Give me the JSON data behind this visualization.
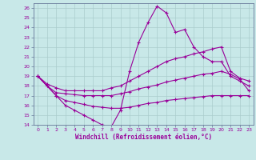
{
  "xlabel": "Windchill (Refroidissement éolien,°C)",
  "bg_color": "#c8e8e8",
  "line_color": "#990099",
  "grid_color": "#aacccc",
  "xlim": [
    -0.5,
    23.5
  ],
  "ylim": [
    14,
    26.5
  ],
  "xticks": [
    0,
    1,
    2,
    3,
    4,
    5,
    6,
    7,
    8,
    9,
    10,
    11,
    12,
    13,
    14,
    15,
    16,
    17,
    18,
    19,
    20,
    21,
    22,
    23
  ],
  "yticks": [
    14,
    15,
    16,
    17,
    18,
    19,
    20,
    21,
    22,
    23,
    24,
    25,
    26
  ],
  "curve1_x": [
    0,
    1,
    2,
    3,
    4,
    5,
    6,
    7,
    8,
    9,
    10,
    11,
    12,
    13,
    14,
    15,
    16,
    17,
    18,
    19,
    20,
    21,
    22,
    23
  ],
  "curve1_y": [
    19,
    18,
    17,
    16,
    15.5,
    15,
    14.5,
    14,
    13.8,
    15.5,
    19.5,
    22.5,
    24.5,
    26.2,
    25.5,
    23.5,
    23.8,
    22,
    21,
    20.5,
    20.5,
    19,
    18.5,
    18
  ],
  "curve2_x": [
    0,
    1,
    2,
    3,
    4,
    5,
    6,
    7,
    8,
    9,
    10,
    11,
    12,
    13,
    14,
    15,
    16,
    17,
    18,
    19,
    20,
    21,
    22,
    23
  ],
  "curve2_y": [
    19,
    18.2,
    17.8,
    17.5,
    17.5,
    17.5,
    17.5,
    17.5,
    17.8,
    18,
    18.5,
    19,
    19.5,
    20,
    20.5,
    20.8,
    21,
    21.3,
    21.5,
    21.8,
    22,
    19.5,
    18.8,
    18.5
  ],
  "curve3_x": [
    0,
    1,
    2,
    3,
    4,
    5,
    6,
    7,
    8,
    9,
    10,
    11,
    12,
    13,
    14,
    15,
    16,
    17,
    18,
    19,
    20,
    21,
    22,
    23
  ],
  "curve3_y": [
    19,
    18,
    17.3,
    17.2,
    17.1,
    17.0,
    17.0,
    17.0,
    17.0,
    17.2,
    17.4,
    17.7,
    17.9,
    18.1,
    18.4,
    18.6,
    18.8,
    19.0,
    19.2,
    19.3,
    19.5,
    19.2,
    18.7,
    17.5
  ],
  "curve4_x": [
    0,
    2,
    3,
    4,
    5,
    6,
    7,
    8,
    9,
    10,
    11,
    12,
    13,
    14,
    15,
    16,
    17,
    18,
    19,
    20,
    21,
    22,
    23
  ],
  "curve4_y": [
    19,
    17.0,
    16.5,
    16.3,
    16.1,
    15.9,
    15.8,
    15.7,
    15.7,
    15.8,
    16.0,
    16.2,
    16.3,
    16.5,
    16.6,
    16.7,
    16.8,
    16.9,
    17.0,
    17.0,
    17.0,
    17.0,
    17.0
  ]
}
